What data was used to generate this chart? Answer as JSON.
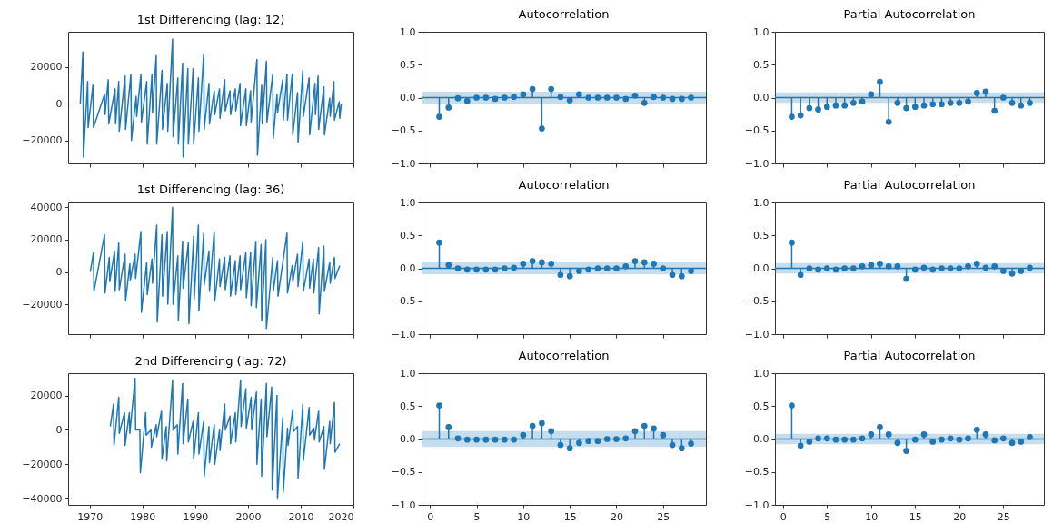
{
  "chart_data": [
    {
      "type": "line",
      "title": "1st Differencing (lag: 12)",
      "xlim": [
        1965.9,
        2020
      ],
      "xticks": [
        1970,
        1980,
        1990,
        2000,
        2010,
        2020
      ],
      "ylim": [
        -32500,
        39000
      ],
      "yticks": [
        {
          "value": -20000,
          "label": "−20000"
        },
        0,
        20000
      ],
      "tick_labels": "y",
      "series": [
        {
          "color": "#1f77b4",
          "x": [
            1968.2,
            1968.7,
            1968.8,
            1969.6,
            1969.7,
            1970.6,
            1970.7,
            1972.8,
            1972.9,
            1973.5,
            1973.6,
            1974.8,
            1974.9,
            1975.5,
            1975.6,
            1976.7,
            1976.8,
            1977.8,
            1977.9,
            1978.8,
            1978.9,
            1979.7,
            1979.8,
            1980.8,
            1980.9,
            1981.8,
            1981.9,
            1982.6,
            1982.7,
            1983.7,
            1983.8,
            1984.7,
            1984.8,
            1985.7,
            1985.8,
            1986.7,
            1986.8,
            1987.6,
            1987.7,
            1988.6,
            1988.7,
            1989.6,
            1989.7,
            1990.6,
            1990.7,
            1991.6,
            1991.7,
            1992.6,
            1992.7,
            1993.6,
            1993.7,
            1994.6,
            1994.7,
            1995.6,
            1995.7,
            1996.6,
            1996.7,
            1997.6,
            1997.7,
            1998.5,
            1998.6,
            1999.6,
            1999.7,
            2000.5,
            2000.6,
            2001.7,
            2001.8,
            2002.6,
            2002.7,
            2003.5,
            2003.6,
            2004.7,
            2004.8,
            2005.5,
            2005.6,
            2006.6,
            2006.7,
            2007.4,
            2007.5,
            2008.4,
            2008.5,
            2009.4,
            2009.5,
            2010.4,
            2010.5,
            2011.6,
            2011.7,
            2012.7,
            2012.8,
            2013.3,
            2013.4,
            2014.4,
            2014.5,
            2015.5,
            2015.6,
            2016.3,
            2016.4,
            2017.3,
            2017.4,
            2017.7
          ],
          "values": [
            0,
            28000,
            -29000,
            12000,
            -13000,
            10000,
            -13000,
            5000,
            -6000,
            13000,
            -11000,
            8000,
            -11000,
            12000,
            -15000,
            15000,
            -14000,
            16000,
            -20000,
            4000,
            -7000,
            16000,
            -10000,
            12000,
            -22000,
            16000,
            -5000,
            26000,
            -22000,
            18000,
            -14000,
            11000,
            -15000,
            35000,
            -18000,
            14000,
            -22000,
            22000,
            -29000,
            19000,
            -22000,
            19000,
            -22000,
            14000,
            -15000,
            27000,
            -14000,
            11000,
            -11000,
            7000,
            -6000,
            8000,
            -8000,
            13000,
            -4000,
            7000,
            -6000,
            8000,
            -4000,
            11000,
            -12000,
            8000,
            -12000,
            7000,
            -10000,
            24000,
            -28000,
            10000,
            -11000,
            23000,
            -10000,
            16000,
            -19000,
            5000,
            -5000,
            13000,
            -9000,
            16000,
            -9000,
            16000,
            -17000,
            6000,
            -21000,
            18000,
            -7000,
            14000,
            -17000,
            11000,
            -6000,
            15000,
            -14000,
            9000,
            -17000,
            3000,
            -7000,
            12000,
            -9000,
            1000,
            -8000,
            0
          ]
        }
      ]
    },
    {
      "type": "lollipop",
      "title": "Autocorrelation",
      "xlim": [
        -0.9,
        29.6
      ],
      "xticks": [
        0,
        5,
        10,
        15,
        20,
        25
      ],
      "ylim": [
        -1,
        1
      ],
      "yticks": [
        {
          "value": -1,
          "label": "−1.0"
        },
        {
          "value": -0.5,
          "label": "−0.5"
        },
        {
          "value": 0,
          "label": "0.0"
        },
        {
          "value": 0.5,
          "label": "0.5"
        },
        {
          "value": 1,
          "label": "1.0"
        }
      ],
      "tick_labels": "y",
      "marker": "circle",
      "x": [
        1,
        2,
        3,
        4,
        5,
        6,
        7,
        8,
        9,
        10,
        11,
        12,
        13,
        14,
        15,
        16,
        17,
        18,
        19,
        20,
        21,
        22,
        23,
        24,
        25,
        26,
        27,
        28
      ],
      "ref_lines": [
        {
          "axis": "y",
          "value": 0,
          "color": "#1f77b4"
        }
      ],
      "bands": [
        {
          "axis": "y",
          "from": -0.09,
          "to": 0.09,
          "color": "#1f77b4"
        }
      ],
      "series": [
        {
          "color": "#1f77b4",
          "values": [
            -0.29,
            -0.15,
            -0.01,
            -0.05,
            0,
            0,
            -0.02,
            0,
            0.01,
            0.05,
            0.13,
            -0.47,
            0.13,
            0.01,
            -0.04,
            0.05,
            0,
            0,
            0,
            0,
            -0.02,
            0.03,
            -0.08,
            0.01,
            0,
            -0.02,
            -0.02,
            0
          ]
        }
      ]
    },
    {
      "type": "lollipop",
      "title": "Partial Autocorrelation",
      "xlim": [
        -0.9,
        29.6
      ],
      "xticks": [
        0,
        5,
        10,
        15,
        20,
        25
      ],
      "ylim": [
        -1,
        1
      ],
      "yticks": [
        {
          "value": -1,
          "label": "−1.0"
        },
        {
          "value": -0.5,
          "label": "−0.5"
        },
        {
          "value": 0,
          "label": "0.0"
        },
        {
          "value": 0.5,
          "label": "0.5"
        },
        {
          "value": 1,
          "label": "1.0"
        }
      ],
      "tick_labels": "y",
      "marker": "circle",
      "x": [
        1,
        2,
        3,
        4,
        5,
        6,
        7,
        8,
        9,
        10,
        11,
        12,
        13,
        14,
        15,
        16,
        17,
        18,
        19,
        20,
        21,
        22,
        23,
        24,
        25,
        26,
        27,
        28
      ],
      "ref_lines": [
        {
          "axis": "y",
          "value": 0,
          "color": "#1f77b4"
        }
      ],
      "bands": [
        {
          "axis": "y",
          "from": -0.08,
          "to": 0.08,
          "color": "#1f77b4"
        }
      ],
      "series": [
        {
          "color": "#1f77b4",
          "values": [
            -0.29,
            -0.27,
            -0.16,
            -0.18,
            -0.14,
            -0.12,
            -0.12,
            -0.08,
            -0.06,
            0.05,
            0.24,
            -0.37,
            -0.08,
            -0.16,
            -0.14,
            -0.12,
            -0.1,
            -0.1,
            -0.08,
            -0.08,
            -0.06,
            0.07,
            0.09,
            -0.2,
            0,
            -0.08,
            -0.12,
            -0.08
          ]
        }
      ]
    },
    {
      "type": "line",
      "title": "1st Differencing (lag: 36)",
      "xlim": [
        1965.9,
        2020
      ],
      "xticks": [
        1970,
        1980,
        1990,
        2000,
        2010,
        2020
      ],
      "ylim": [
        -38500,
        43000
      ],
      "yticks": [
        {
          "value": -20000,
          "label": "−20000"
        },
        0,
        20000,
        40000
      ],
      "tick_labels": "y",
      "series": [
        {
          "color": "#1f77b4",
          "x": [
            1970.1,
            1970.7,
            1970.8,
            1972.8,
            1972.9,
            1973.7,
            1973.8,
            1974.7,
            1974.8,
            1975.5,
            1975.6,
            1976.7,
            1976.8,
            1977.6,
            1977.7,
            1978.6,
            1978.7,
            1979.7,
            1979.8,
            1980.8,
            1980.9,
            1981.8,
            1981.9,
            1982.7,
            1982.8,
            1983.7,
            1983.8,
            1984.7,
            1984.8,
            1985.7,
            1985.8,
            1986.7,
            1986.8,
            1987.6,
            1987.7,
            1988.7,
            1988.8,
            1989.7,
            1989.8,
            1990.6,
            1990.7,
            1991.6,
            1991.7,
            1992.6,
            1992.7,
            1993.6,
            1993.7,
            1994.6,
            1994.7,
            1995.6,
            1995.7,
            1996.6,
            1996.7,
            1997.6,
            1997.7,
            1998.5,
            1998.6,
            1999.6,
            1999.7,
            2000.5,
            2000.6,
            2001.5,
            2001.6,
            2002.5,
            2002.6,
            2003.4,
            2003.5,
            2004.7,
            2004.8,
            2005.6,
            2005.7,
            2007.4,
            2007.5,
            2008.4,
            2008.5,
            2009.4,
            2009.5,
            2010.4,
            2010.5,
            2011.6,
            2011.7,
            2012.4,
            2012.5,
            2013.4,
            2013.5,
            2014.4,
            2014.5,
            2015.5,
            2015.6,
            2016.4,
            2016.5,
            2017.4
          ],
          "values": [
            0,
            12000,
            -12000,
            23000,
            -13000,
            9000,
            -6000,
            13000,
            -12000,
            18000,
            -11000,
            11000,
            -18000,
            5000,
            -5000,
            11000,
            -4000,
            25000,
            -25000,
            6000,
            -14000,
            8000,
            -7000,
            29000,
            -31000,
            23000,
            -15000,
            25000,
            -20000,
            40000,
            -20000,
            10000,
            -30000,
            19000,
            -10000,
            18000,
            -32000,
            22000,
            -17000,
            29000,
            -24000,
            24000,
            -8000,
            13000,
            -12000,
            25000,
            -18000,
            8000,
            -9000,
            9000,
            -11000,
            10000,
            -15000,
            7000,
            -14000,
            10000,
            -11000,
            12000,
            -16000,
            12000,
            -21000,
            19000,
            -22000,
            17000,
            -30000,
            20000,
            -35000,
            9000,
            -12000,
            7000,
            -15000,
            24000,
            -13000,
            4000,
            -6000,
            11000,
            -9000,
            19000,
            -12000,
            8000,
            -10000,
            8000,
            -13000,
            15000,
            -26000,
            16000,
            -12000,
            6000,
            -7000,
            9000,
            -4000,
            4000
          ]
        }
      ]
    },
    {
      "type": "lollipop",
      "title": "Autocorrelation",
      "xlim": [
        -0.9,
        29.6
      ],
      "xticks": [
        0,
        5,
        10,
        15,
        20,
        25
      ],
      "ylim": [
        -1,
        1
      ],
      "yticks": [
        {
          "value": -1,
          "label": "−1.0"
        },
        {
          "value": -0.5,
          "label": "−0.5"
        },
        {
          "value": 0,
          "label": "0.0"
        },
        {
          "value": 0.5,
          "label": "0.5"
        },
        {
          "value": 1,
          "label": "1.0"
        }
      ],
      "tick_labels": "y",
      "marker": "circle",
      "x": [
        1,
        2,
        3,
        4,
        5,
        6,
        7,
        8,
        9,
        10,
        11,
        12,
        13,
        14,
        15,
        16,
        17,
        18,
        19,
        20,
        21,
        22,
        23,
        24,
        25,
        26,
        27,
        28
      ],
      "ref_lines": [
        {
          "axis": "y",
          "value": 0,
          "color": "#1f77b4"
        }
      ],
      "bands": [
        {
          "axis": "y",
          "from": -0.09,
          "to": 0.09,
          "color": "#1f77b4"
        }
      ],
      "series": [
        {
          "color": "#1f77b4",
          "values": [
            0.39,
            0.05,
            0,
            -0.02,
            -0.02,
            -0.02,
            -0.02,
            0,
            0.01,
            0.07,
            0.11,
            0.09,
            0.07,
            -0.1,
            -0.12,
            -0.04,
            -0.02,
            0,
            0,
            0,
            0.03,
            0.11,
            0.09,
            0.07,
            0,
            -0.1,
            -0.12,
            -0.04
          ]
        }
      ]
    },
    {
      "type": "lollipop",
      "title": "Partial Autocorrelation",
      "xlim": [
        -0.9,
        29.6
      ],
      "xticks": [
        0,
        5,
        10,
        15,
        20,
        25
      ],
      "ylim": [
        -1,
        1
      ],
      "yticks": [
        {
          "value": -1,
          "label": "−1.0"
        },
        {
          "value": -0.5,
          "label": "−0.5"
        },
        {
          "value": 0,
          "label": "0.0"
        },
        {
          "value": 0.5,
          "label": "0.5"
        },
        {
          "value": 1,
          "label": "1.0"
        }
      ],
      "tick_labels": "y",
      "marker": "circle",
      "x": [
        1,
        2,
        3,
        4,
        5,
        6,
        7,
        8,
        9,
        10,
        11,
        12,
        13,
        14,
        15,
        16,
        17,
        18,
        19,
        20,
        21,
        22,
        23,
        24,
        25,
        26,
        27,
        28
      ],
      "ref_lines": [
        {
          "axis": "y",
          "value": 0,
          "color": "#1f77b4"
        }
      ],
      "bands": [
        {
          "axis": "y",
          "from": -0.08,
          "to": 0.08,
          "color": "#1f77b4"
        }
      ],
      "series": [
        {
          "color": "#1f77b4",
          "values": [
            0.39,
            -0.1,
            0,
            -0.02,
            0,
            -0.02,
            0,
            0,
            0.03,
            0.05,
            0.07,
            0.03,
            0.03,
            -0.16,
            -0.02,
            0.01,
            -0.02,
            0,
            0,
            0,
            0.03,
            0.07,
            0.01,
            0.03,
            -0.04,
            -0.08,
            -0.04,
            0.01
          ]
        }
      ]
    },
    {
      "type": "line",
      "title": "2nd Differencing (lag: 72)",
      "xlim": [
        1965.9,
        2020
      ],
      "xticks": [
        1970,
        1980,
        1990,
        2000,
        2010,
        2020
      ],
      "ylim": [
        -43600,
        33000
      ],
      "yticks": [
        {
          "value": -40000,
          "label": "−40000"
        },
        {
          "value": -20000,
          "label": "−20000"
        },
        0,
        20000
      ],
      "series": [
        {
          "color": "#1f77b4",
          "x": [
            1973.9,
            1974.5,
            1974.6,
            1975.5,
            1975.6,
            1976.6,
            1976.7,
            1977.5,
            1977.6,
            1978.6,
            1978.7,
            1979.5,
            1979.6,
            1980.6,
            1980.7,
            1981.6,
            1981.7,
            1982.6,
            1982.7,
            1983.6,
            1983.7,
            1984.5,
            1984.6,
            1985.7,
            1985.8,
            1986.6,
            1986.7,
            1987.6,
            1987.7,
            1988.6,
            1988.7,
            1989.6,
            1989.7,
            1990.6,
            1990.7,
            1991.6,
            1991.7,
            1992.6,
            1992.7,
            1993.6,
            1993.7,
            1994.6,
            1994.7,
            1995.6,
            1995.7,
            1996.6,
            1996.7,
            1997.6,
            1997.7,
            1998.6,
            1998.7,
            1999.6,
            1999.7,
            2000.6,
            2000.7,
            2001.6,
            2001.7,
            2002.5,
            2002.6,
            2003.5,
            2003.6,
            2004.5,
            2004.6,
            2005.5,
            2005.6,
            2006.6,
            2006.7,
            2007.5,
            2007.6,
            2008.5,
            2008.6,
            2009.4,
            2009.5,
            2010.4,
            2010.5,
            2011.6,
            2011.7,
            2012.5,
            2012.6,
            2013.4,
            2013.5,
            2014.4,
            2014.5,
            2015.5,
            2015.6,
            2016.4,
            2016.5,
            2017.4
          ],
          "values": [
            2000,
            15000,
            -9000,
            19000,
            -2000,
            10000,
            -9000,
            10000,
            -2000,
            30000,
            0,
            0,
            -25000,
            10000,
            -3000,
            0,
            -10000,
            3000,
            -4000,
            11000,
            -17000,
            2000,
            -18000,
            29000,
            0,
            3000,
            -14000,
            27000,
            -8000,
            18000,
            -7000,
            5000,
            -17000,
            10000,
            -14000,
            5000,
            -27000,
            2000,
            -19000,
            3000,
            -20000,
            0,
            -12000,
            15000,
            0,
            8000,
            -8000,
            10000,
            -7000,
            29000,
            2000,
            24000,
            1000,
            19000,
            0,
            22000,
            -20000,
            18000,
            -27000,
            27000,
            -4000,
            25000,
            -35000,
            20000,
            -40000,
            7000,
            -36000,
            1000,
            -9000,
            12000,
            -1000,
            2000,
            -28000,
            15000,
            -18000,
            13000,
            -3000,
            1000,
            -6000,
            11000,
            -7000,
            2000,
            -23000,
            5000,
            -8000,
            16000,
            -13000,
            -8000
          ]
        }
      ]
    },
    {
      "type": "lollipop",
      "title": "Autocorrelation",
      "xlim": [
        -0.9,
        29.6
      ],
      "xticks": [
        0,
        5,
        10,
        15,
        20,
        25
      ],
      "ylim": [
        -1,
        1
      ],
      "yticks": [
        {
          "value": -1,
          "label": "−1.0"
        },
        {
          "value": -0.5,
          "label": "−0.5"
        },
        {
          "value": 0,
          "label": "0.0"
        },
        {
          "value": 0.5,
          "label": "0.5"
        },
        {
          "value": 1,
          "label": "1.0"
        }
      ],
      "marker": "circle",
      "x": [
        1,
        2,
        3,
        4,
        5,
        6,
        7,
        8,
        9,
        10,
        11,
        12,
        13,
        14,
        15,
        16,
        17,
        18,
        19,
        20,
        21,
        22,
        23,
        24,
        25,
        26,
        27,
        28
      ],
      "ref_lines": [
        {
          "axis": "y",
          "value": 0,
          "color": "#1f77b4"
        }
      ],
      "bands": [
        {
          "axis": "y",
          "from": -0.12,
          "to": 0.12,
          "color": "#1f77b4"
        }
      ],
      "series": [
        {
          "color": "#1f77b4",
          "values": [
            0.51,
            0.18,
            0.01,
            -0.01,
            -0.01,
            -0.01,
            -0.01,
            -0.01,
            -0.01,
            0.06,
            0.2,
            0.24,
            0.12,
            -0.09,
            -0.14,
            -0.06,
            -0.03,
            -0.03,
            0,
            0,
            0.01,
            0.12,
            0.2,
            0.16,
            0.06,
            -0.09,
            -0.14,
            -0.07
          ]
        }
      ]
    },
    {
      "type": "lollipop",
      "title": "Partial Autocorrelation",
      "xlim": [
        -0.9,
        29.6
      ],
      "xticks": [
        0,
        5,
        10,
        15,
        20,
        25
      ],
      "ylim": [
        -1,
        1
      ],
      "yticks": [
        {
          "value": -1,
          "label": "−1.0"
        },
        {
          "value": -0.5,
          "label": "−0.5"
        },
        {
          "value": 0,
          "label": "0.0"
        },
        {
          "value": 0.5,
          "label": "0.5"
        },
        {
          "value": 1,
          "label": "1.0"
        }
      ],
      "marker": "circle",
      "x": [
        1,
        2,
        3,
        4,
        5,
        6,
        7,
        8,
        9,
        10,
        11,
        12,
        13,
        14,
        15,
        16,
        17,
        18,
        19,
        20,
        21,
        22,
        23,
        24,
        25,
        26,
        27,
        28
      ],
      "ref_lines": [
        {
          "axis": "y",
          "value": 0,
          "color": "#1f77b4"
        }
      ],
      "bands": [
        {
          "axis": "y",
          "from": -0.08,
          "to": 0.08,
          "color": "#1f77b4"
        }
      ],
      "series": [
        {
          "color": "#1f77b4",
          "values": [
            0.51,
            -0.1,
            -0.04,
            0.01,
            0.01,
            -0.01,
            -0.01,
            -0.01,
            0.01,
            0.07,
            0.18,
            0.07,
            -0.06,
            -0.18,
            -0.01,
            0.07,
            -0.04,
            -0.01,
            0.01,
            -0.01,
            0.01,
            0.14,
            0.07,
            -0.02,
            0.01,
            -0.06,
            -0.04,
            0.03
          ]
        }
      ]
    }
  ]
}
